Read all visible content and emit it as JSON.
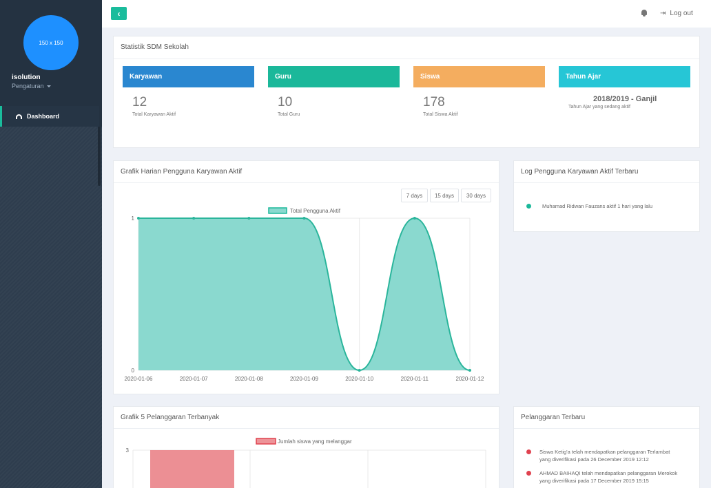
{
  "sidebar": {
    "avatar_text": "150 x 150",
    "user_name": "isolution",
    "user_menu": "Pengaturan",
    "nav_dashboard": "Dashboard"
  },
  "topbar": {
    "back_icon": "‹",
    "logout_label": "Log out",
    "logout_icon": "⇥"
  },
  "stats": {
    "title": "Statistik SDM Sekolah",
    "karyawan": {
      "label": "Karyawan",
      "value": "12",
      "sub": "Total Karyawan Aktif",
      "color": "#2a87d0"
    },
    "guru": {
      "label": "Guru",
      "value": "10",
      "sub": "Total Guru",
      "color": "#1bb89a"
    },
    "siswa": {
      "label": "Siswa",
      "value": "178",
      "sub": "Total Siswa Aktif",
      "color": "#f4ad5f"
    },
    "tahun": {
      "label": "Tahun Ajar",
      "value": "2018/2019 - Ganjil",
      "sub": "Tahun Ajar yang sedang aktif",
      "color": "#26c6d6"
    }
  },
  "chart1": {
    "title": "Grafik Harian Pengguna Karyawan Aktif",
    "ranges": [
      "7 days",
      "15 days",
      "30 days"
    ]
  },
  "log": {
    "title": "Log Pengguna Karyawan Aktif Terbaru",
    "items": [
      "Muhamad Ridwan Fauzans aktif 1 hari yang lalu"
    ],
    "dot_color": "#1bb89a"
  },
  "chart2": {
    "title": "Grafik 5 Pelanggaran Terbanyak"
  },
  "violations": {
    "title": "Pelanggaran Terbaru",
    "dot_color": "#e0424f",
    "items": [
      {
        "line1": "Siswa Ketig'a telah mendapatkan pelanggaran Terlambat",
        "line2": "yang diverifikasi pada 26 December 2019 12:12"
      },
      {
        "line1": "AHMAD BAIHAQI telah mendapatkan pelanggaran Merokok",
        "line2": "yang diverifikasi pada 17 December 2019 15:15"
      }
    ]
  },
  "chart_data": [
    {
      "type": "area",
      "title": "",
      "x": [
        "2020-01-06",
        "2020-01-07",
        "2020-01-08",
        "2020-01-09",
        "2020-01-10",
        "2020-01-11",
        "2020-01-12"
      ],
      "series": [
        {
          "name": "Total Pengguna Aktif",
          "values": [
            1,
            1,
            1,
            1,
            0,
            1,
            0
          ],
          "color": "#1bb89a"
        }
      ],
      "ylim": [
        0,
        1
      ],
      "y_ticks": [
        "0",
        "1"
      ],
      "grid": true,
      "legend": "top"
    },
    {
      "type": "bar",
      "title": "",
      "categories": [
        ""
      ],
      "series": [
        {
          "name": "Jumlah siswa yang melanggar",
          "values": [
            3
          ],
          "color": "#e0424f"
        }
      ],
      "y_ticks": [
        "3"
      ],
      "grid": true,
      "legend": "top"
    }
  ]
}
